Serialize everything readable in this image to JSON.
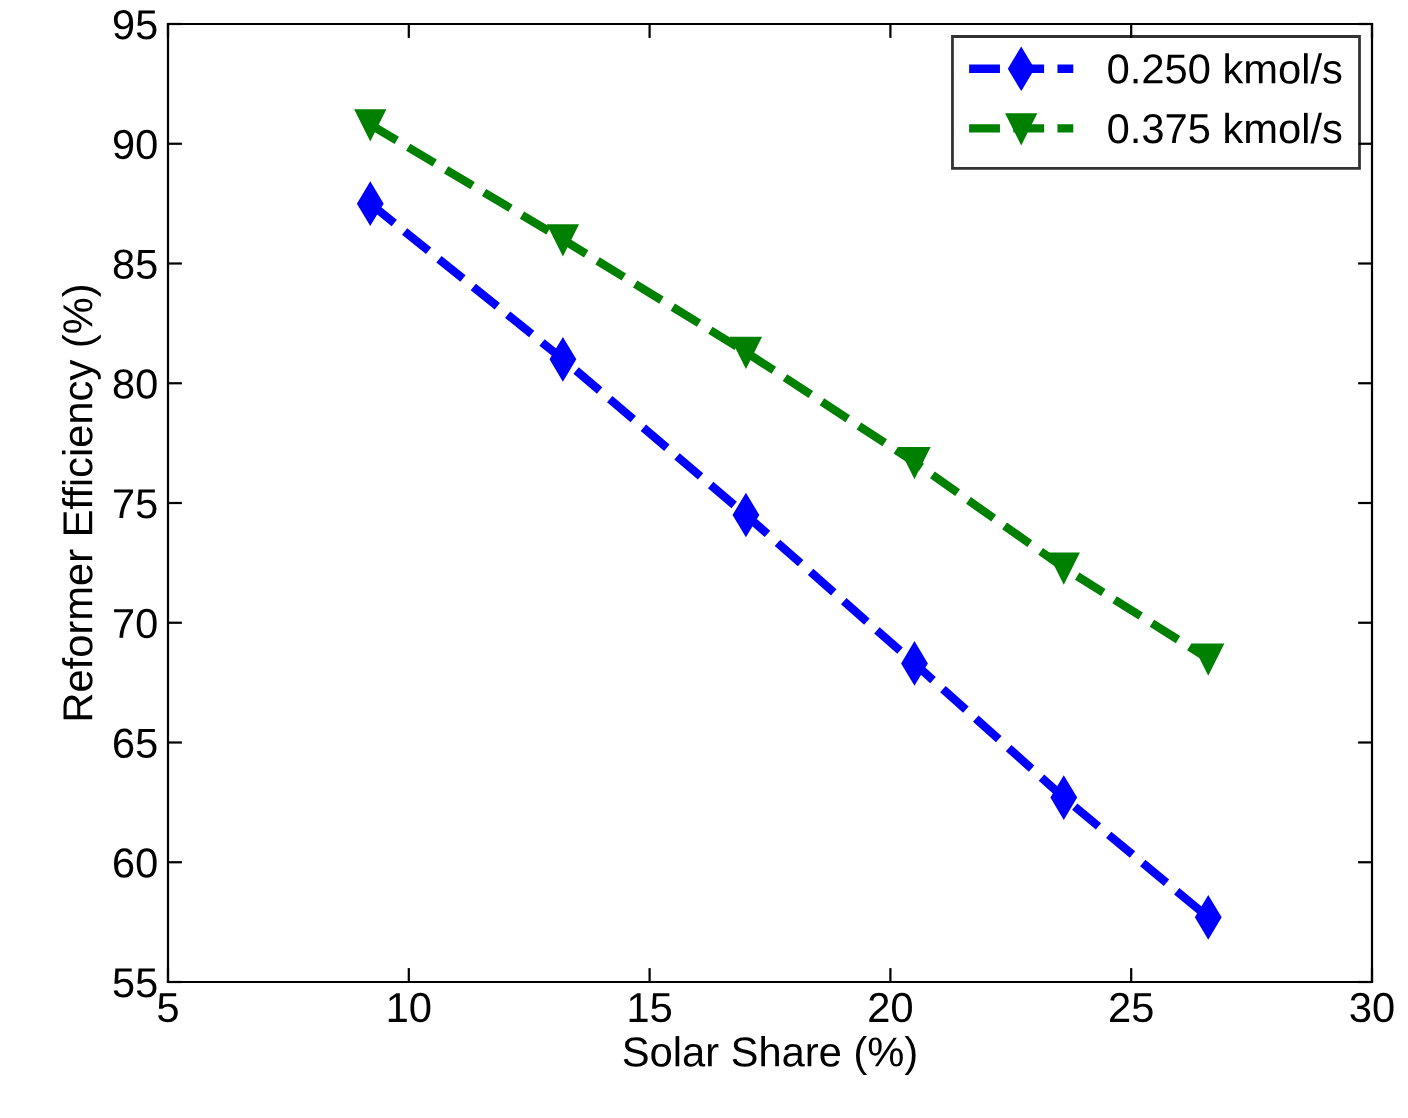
{
  "chart_data": {
    "type": "line",
    "xlabel": "Solar Share (%)",
    "ylabel": "Reformer Efficiency (%)",
    "x": [
      9.2,
      13.2,
      17.0,
      20.5,
      23.6,
      26.6
    ],
    "series": [
      {
        "name": "0.250 kmol/s",
        "color": "#0000ff",
        "marker": "diamond",
        "line_style": "dashed",
        "values": [
          87.5,
          81.0,
          74.5,
          68.3,
          62.7,
          57.7
        ]
      },
      {
        "name": "0.375 kmol/s",
        "color": "#008000",
        "marker": "triangle",
        "line_style": "dashed",
        "values": [
          90.8,
          86.0,
          81.3,
          76.7,
          72.3,
          68.5
        ]
      }
    ],
    "xlim": [
      5,
      30
    ],
    "xticks": [
      5,
      10,
      15,
      20,
      25,
      30
    ],
    "ylim": [
      55,
      95
    ],
    "yticks": [
      55,
      60,
      65,
      70,
      75,
      80,
      85,
      90,
      95
    ],
    "grid": false,
    "legend": "top right"
  }
}
